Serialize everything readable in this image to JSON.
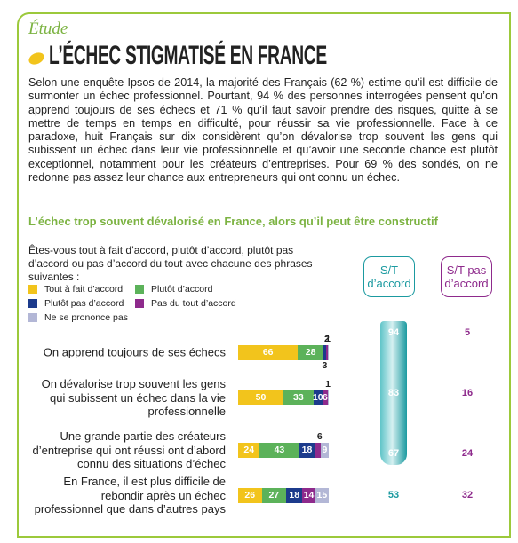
{
  "kicker": "Étude",
  "title": "L’ÉCHEC STIGMATISÉ EN FRANCE",
  "intro": "Selon une enquête Ipsos de 2014, la majorité des Français (62 %) estime qu’il est difficile de surmonter un échec professionnel. Pourtant, 94 % des personnes interrogées pensent qu’on apprend toujours de ses échecs et 71 % qu’il faut savoir prendre des risques, quitte à se mettre de temps en temps en difficulté, pour réussir sa vie professionnelle. Face à ce paradoxe, huit Français sur dix considèrent qu’on dévalorise trop souvent les gens qui subissent un échec dans leur vie professionnelle et qu’avoir une seconde chance est plutôt exceptionnel, notamment pour les créateurs d’entreprises. Pour 69 % des sondés, on ne redonne pas assez leur chance aux entrepreneurs qui ont connu un échec.",
  "chart_data": {
    "type": "bar",
    "orientation": "horizontal",
    "stacked": true,
    "title": "L’échec trop souvent dévalorisé en France, alors qu’il peut être constructif",
    "subtitle": "Êtes-vous tout à fait d’accord, plutôt d’accord, plutôt pas d’accord ou pas d’accord du tout avec chacune des phrases suivantes :",
    "categories": [
      "On apprend toujours de ses échecs",
      "On dévalorise trop souvent les gens qui subissent un échec dans la vie professionnelle",
      "Une grande partie des créateurs d’entreprise qui ont réussi ont d’abord connu des situations d’échec",
      "En France, il est plus difficile de rebondir après un échec professionnel que dans d’autres pays"
    ],
    "xlim": [
      0,
      100
    ],
    "series": [
      {
        "name": "Tout à fait d’accord",
        "color": "#f2c41c",
        "values": [
          66,
          50,
          24,
          26
        ]
      },
      {
        "name": "Plutôt d’accord",
        "color": "#5cb25a",
        "values": [
          28,
          33,
          43,
          27
        ]
      },
      {
        "name": "Plutôt pas d’accord",
        "color": "#1c3b8c",
        "values": [
          3,
          10,
          18,
          18
        ]
      },
      {
        "name": "Pas du tout d’accord",
        "color": "#8e2a8c",
        "values": [
          2,
          6,
          6,
          14
        ]
      },
      {
        "name": "Ne se prononce pas",
        "color": "#b3b7d6",
        "values": [
          1,
          1,
          9,
          15
        ]
      }
    ],
    "totals": [
      {
        "name": "S/T d’accord",
        "color": "#1b9aa0",
        "values": [
          94,
          83,
          67,
          53
        ]
      },
      {
        "name": "S/T pas d’accord",
        "color": "#8e2a8c",
        "values": [
          5,
          16,
          24,
          32
        ]
      }
    ]
  }
}
